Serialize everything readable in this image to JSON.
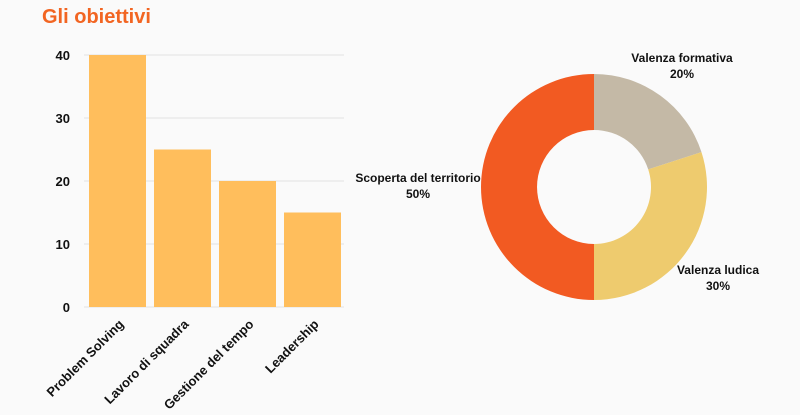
{
  "page": {
    "title": "Gli obiettivi"
  },
  "chart_data": [
    {
      "type": "bar",
      "categories": [
        "Problem Solving",
        "Lavoro di squadra",
        "Gestione del tempo",
        "Leadership"
      ],
      "values": [
        40,
        25,
        20,
        15
      ],
      "ylim": [
        0,
        40
      ],
      "yticks": [
        0,
        10,
        20,
        30,
        40
      ],
      "grid": true,
      "color": "#ffbe5c"
    },
    {
      "type": "pie",
      "donut": true,
      "slices": [
        {
          "label": "Valenza formativa",
          "value": 20,
          "pct": "20%",
          "color": "#c4b9a6"
        },
        {
          "label": "Valenza ludica",
          "value": 30,
          "pct": "30%",
          "color": "#eecb6e"
        },
        {
          "label": "Scoperta del territorio",
          "value": 50,
          "pct": "50%",
          "color": "#f25a22"
        }
      ]
    }
  ]
}
